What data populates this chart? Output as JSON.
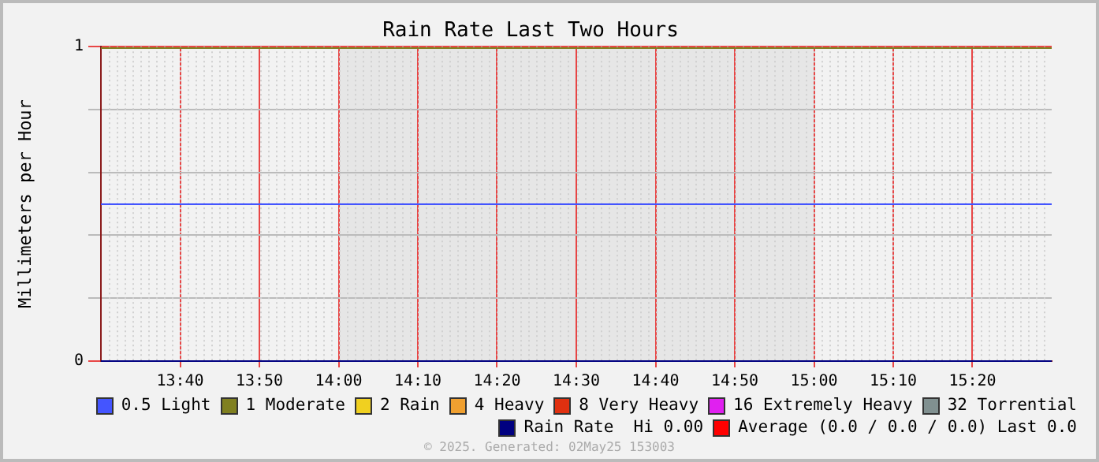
{
  "chart_data": {
    "type": "line",
    "title": "Rain Rate Last Two Hours",
    "ylabel": "Millimeters per Hour",
    "xlim": [
      13.5,
      15.5
    ],
    "xticks": [
      {
        "value": 13.6667,
        "label": "13:40"
      },
      {
        "value": 13.8333,
        "label": "13:50"
      },
      {
        "value": 14,
        "label": "14:00"
      },
      {
        "value": 14.1667,
        "label": "14:10"
      },
      {
        "value": 14.3333,
        "label": "14:20"
      },
      {
        "value": 14.5,
        "label": "14:30"
      },
      {
        "value": 14.6667,
        "label": "14:40"
      },
      {
        "value": 14.8333,
        "label": "14:50"
      },
      {
        "value": 15,
        "label": "15:00"
      },
      {
        "value": 15.1667,
        "label": "15:10"
      },
      {
        "value": 15.3333,
        "label": "15:20"
      }
    ],
    "ylim": [
      0,
      1
    ],
    "yticks": [
      0,
      {
        "value": 0.2,
        "label": null
      },
      {
        "value": 0.4,
        "label": null
      },
      {
        "value": 0.6,
        "label": null
      },
      {
        "value": 0.8,
        "label": null
      },
      1
    ],
    "grid": true,
    "legend": "bottom",
    "marker": "none",
    "line_style": "solid",
    "bands": [
      {
        "axis": "x",
        "from": 14,
        "to": 15,
        "color": "#e6e6e6"
      }
    ],
    "ref_lines": [
      {
        "axis": "y",
        "value": 0.5,
        "label": "0.5 Light",
        "color": "#4455ff"
      },
      {
        "axis": "y",
        "value": 1,
        "label": "1 Moderate",
        "color": "#808020"
      }
    ],
    "series": [
      {
        "name": "2 Rain",
        "color": "#f0d020"
      },
      {
        "name": "4 Heavy",
        "color": "#f0a030"
      },
      {
        "name": "8 Very Heavy",
        "color": "#e03010"
      },
      {
        "name": "16 Extremely Heavy",
        "color": "#e020f0"
      },
      {
        "name": "32 Torrential",
        "color": "#809090"
      },
      {
        "name": "Rain Rate  Hi 0.00",
        "color": "#000080",
        "x": [
          13.5,
          15.5
        ],
        "values": [
          0,
          0
        ]
      },
      {
        "name": "Average (0.0 / 0.0 / 0.0) Last 0.0",
        "color": "#ff0000"
      }
    ],
    "annotations": [
      "© 2025. Generated: 02May25 153003"
    ]
  }
}
